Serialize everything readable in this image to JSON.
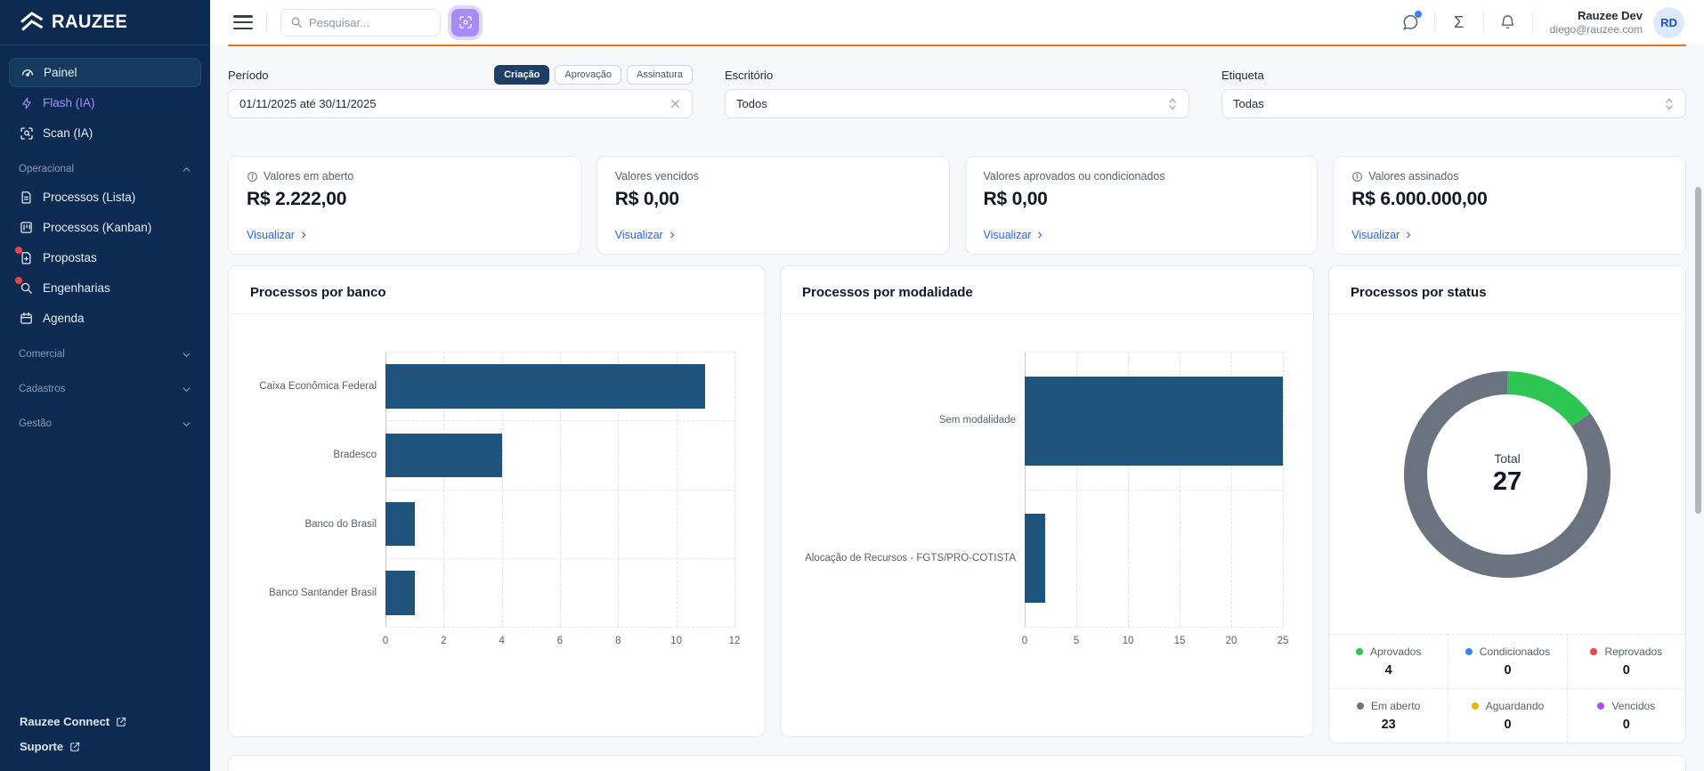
{
  "sidebar": {
    "logo": "RAUZEE",
    "painel": "Painel",
    "flash": "Flash (IA)",
    "scan": "Scan (IA)",
    "section_operacional": "Operacional",
    "processos_lista": "Processos (Lista)",
    "processos_kanban": "Processos (Kanban)",
    "propostas": "Propostas",
    "engenharias": "Engenharias",
    "agenda": "Agenda",
    "section_comercial": "Comercial",
    "section_cadastros": "Cadastros",
    "section_gestao": "Gestão",
    "footer_connect": "Rauzee Connect",
    "footer_suporte": "Suporte"
  },
  "topbar": {
    "search_placeholder": "Pesquisar...",
    "user_name": "Rauzee Dev",
    "user_email": "diego@rauzee.com",
    "avatar_initials": "RD"
  },
  "filters": {
    "periodo_label": "Período",
    "periodo_tabs": [
      "Criação",
      "Aprovação",
      "Assinatura"
    ],
    "periodo_active_tab": "Criação",
    "periodo_value": "01/11/2025 até 30/11/2025",
    "escritorio_label": "Escritório",
    "escritorio_value": "Todos",
    "etiqueta_label": "Etiqueta",
    "etiqueta_value": "Todas"
  },
  "summary_cards": [
    {
      "label": "Valores em aberto",
      "value": "R$ 2.222,00",
      "link": "Visualizar",
      "has_info_icon": true
    },
    {
      "label": "Valores vencidos",
      "value": "R$ 0,00",
      "link": "Visualizar",
      "has_info_icon": false
    },
    {
      "label": "Valores aprovados ou condicionados",
      "value": "R$ 0,00",
      "link": "Visualizar",
      "has_info_icon": false
    },
    {
      "label": "Valores assinados",
      "value": "R$ 6.000.000,00",
      "link": "Visualizar",
      "has_info_icon": true
    }
  ],
  "chart_data": [
    {
      "type": "bar",
      "orientation": "horizontal",
      "title": "Processos por banco",
      "categories": [
        "Caixa Econômica Federal",
        "Bradesco",
        "Banco do Brasil",
        "Banco Santander Brasil"
      ],
      "values": [
        11,
        4,
        1,
        1
      ],
      "xticks": [
        0,
        2,
        4,
        6,
        8,
        10,
        12
      ],
      "xlim": [
        0,
        12
      ],
      "bar_color": "#1e547d",
      "grid": "dashed"
    },
    {
      "type": "bar",
      "orientation": "horizontal",
      "title": "Processos por modalidade",
      "categories": [
        "Sem modalidade",
        "Alocação de Recursos - FGTS/PRO-COTISTA"
      ],
      "values": [
        25,
        2
      ],
      "xticks": [
        0,
        5,
        10,
        15,
        20,
        25
      ],
      "xlim": [
        0,
        25
      ],
      "bar_color": "#1e547d",
      "grid": "dashed"
    },
    {
      "type": "donut",
      "title": "Processos por status",
      "center_label": "Total",
      "total": 27,
      "segments": [
        {
          "name": "Aprovados",
          "value": 4,
          "color": "#2dc653"
        },
        {
          "name": "Em aberto",
          "value": 23,
          "color": "#6b7280"
        }
      ],
      "legend": [
        {
          "name": "Aprovados",
          "value": 4,
          "color": "#2dc653"
        },
        {
          "name": "Condicionados",
          "value": 0,
          "color": "#3b82f6"
        },
        {
          "name": "Reprovados",
          "value": 0,
          "color": "#ef4444"
        },
        {
          "name": "Em aberto",
          "value": 23,
          "color": "#6b7280"
        },
        {
          "name": "Aguardando",
          "value": 0,
          "color": "#eab308"
        },
        {
          "name": "Vencidos",
          "value": 0,
          "color": "#a855f7"
        }
      ]
    }
  ],
  "colors": {
    "accent_orange": "#ed7117",
    "sidebar_bg": "#0d2b52",
    "sidebar_active_bg": "#16395f",
    "flash_purple": "#a78bfa",
    "scan_button_purple": "#a78bfa",
    "link_blue": "#2563eb",
    "bar_blue": "#1e547d",
    "donut_green": "#2dc653",
    "donut_gray": "#6b7280"
  }
}
